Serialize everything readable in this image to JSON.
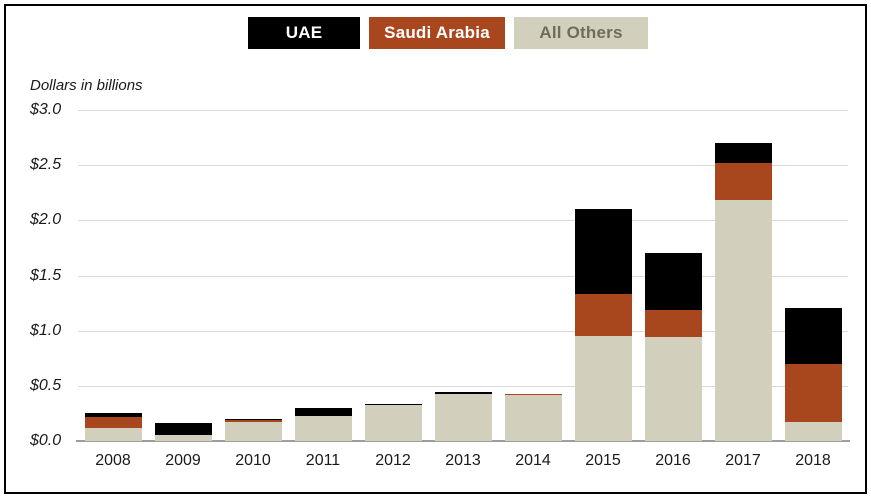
{
  "legend": {
    "items": [
      {
        "label": "UAE",
        "bg": "#000000",
        "text": "#ffffff"
      },
      {
        "label": "Saudi Arabia",
        "bg": "#A8461E",
        "text": "#ffffff"
      },
      {
        "label": "All Others",
        "bg": "#D2D0BD",
        "text": "#6E6E58"
      }
    ]
  },
  "chart_data": {
    "type": "bar",
    "stacked": true,
    "title": "",
    "ylabel": "Dollars in billions",
    "xlabel": "",
    "categories": [
      "2008",
      "2009",
      "2010",
      "2011",
      "2012",
      "2013",
      "2014",
      "2015",
      "2016",
      "2017",
      "2018"
    ],
    "series": [
      {
        "name": "UAE",
        "color": "#000000",
        "values": [
          0.03,
          0.11,
          0.01,
          0.07,
          0.01,
          0.01,
          0.0,
          0.77,
          0.51,
          0.18,
          0.51
        ]
      },
      {
        "name": "Saudi Arabia",
        "color": "#A8461E",
        "values": [
          0.1,
          0.0,
          0.02,
          0.0,
          0.0,
          0.0,
          0.01,
          0.38,
          0.25,
          0.34,
          0.53
        ]
      },
      {
        "name": "All Others",
        "color": "#D2D0BD",
        "values": [
          0.12,
          0.05,
          0.17,
          0.23,
          0.33,
          0.43,
          0.42,
          0.95,
          0.94,
          2.18,
          0.17
        ]
      }
    ],
    "stack_order_bottom_to_top": [
      "All Others",
      "Saudi Arabia",
      "UAE"
    ],
    "ylim": [
      0,
      3.0
    ],
    "yticks": [
      {
        "label": "$3.0",
        "value": 3.0
      },
      {
        "label": "$2.5",
        "value": 2.5
      },
      {
        "label": "$2.0",
        "value": 2.0
      },
      {
        "label": "$1.5",
        "value": 1.5
      },
      {
        "label": "$1.0",
        "value": 1.0
      },
      {
        "label": "$0.5",
        "value": 0.5
      },
      {
        "label": "$0.0",
        "value": 0.0
      }
    ],
    "grid": true,
    "legend_position": "top-center",
    "gridline_color": "#d9d9d9",
    "axis_color": "#9e9e9e"
  }
}
